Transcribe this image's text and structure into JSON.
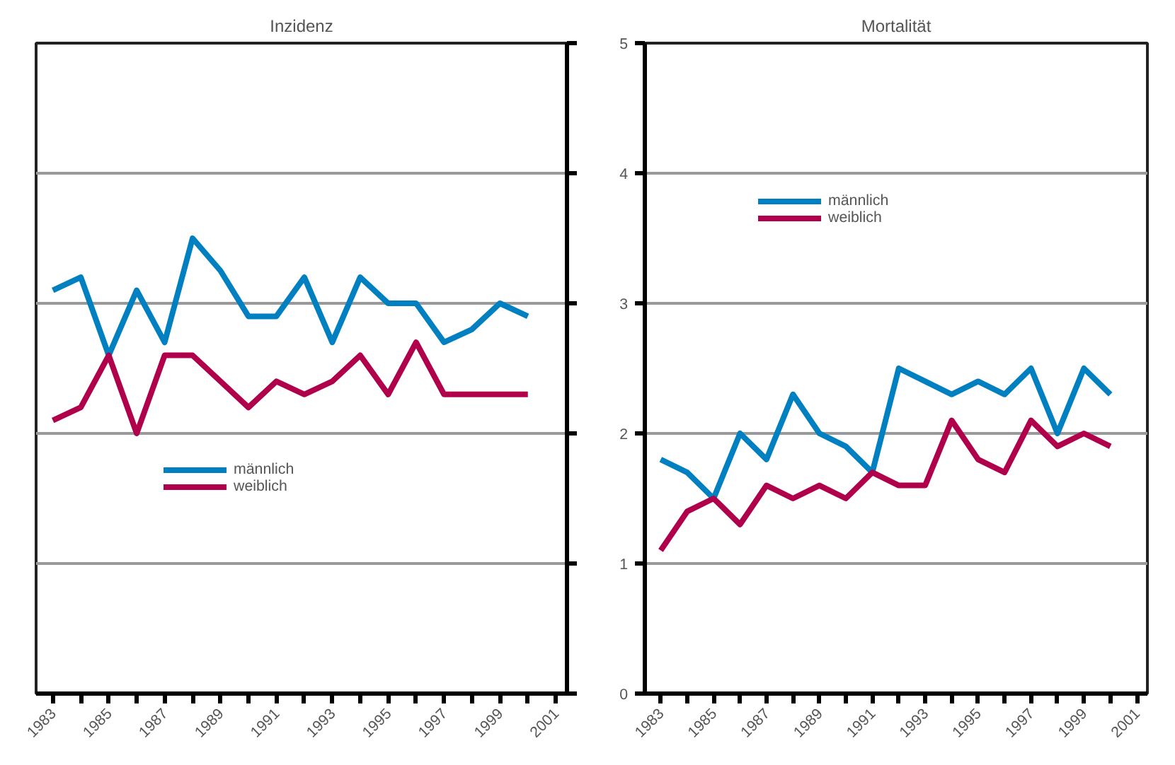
{
  "chart_data": [
    {
      "type": "line",
      "title": "Inzidenz",
      "x": [
        1983,
        1984,
        1985,
        1986,
        1987,
        1988,
        1989,
        1990,
        1991,
        1992,
        1993,
        1994,
        1995,
        1996,
        1997,
        1998,
        1999,
        2000
      ],
      "series": [
        {
          "name": "männlich",
          "color": "#0080c0",
          "values": [
            3.1,
            3.2,
            2.6,
            3.1,
            2.7,
            3.5,
            3.25,
            2.9,
            2.9,
            3.2,
            2.7,
            3.2,
            3.0,
            3.0,
            2.7,
            2.8,
            3.0,
            2.9
          ]
        },
        {
          "name": "weiblich",
          "color": "#b0004c",
          "values": [
            2.1,
            2.2,
            2.6,
            2.0,
            2.6,
            2.6,
            2.4,
            2.2,
            2.4,
            2.3,
            2.4,
            2.6,
            2.3,
            2.7,
            2.3,
            2.3,
            2.3,
            2.3
          ]
        }
      ],
      "xlim": [
        1982.4,
        2001.4
      ],
      "xticks": [
        1983,
        {
          "value": 1984,
          "label": null
        },
        1985,
        {
          "value": 1986,
          "label": null
        },
        1987,
        {
          "value": 1988,
          "label": null
        },
        1989,
        {
          "value": 1990,
          "label": null
        },
        1991,
        {
          "value": 1992,
          "label": null
        },
        1993,
        {
          "value": 1994,
          "label": null
        },
        1995,
        {
          "value": 1996,
          "label": null
        },
        1997,
        {
          "value": 1998,
          "label": null
        },
        1999,
        {
          "value": 2000,
          "label": null
        },
        2001
      ],
      "ylim": [
        0,
        5
      ],
      "yticks": [
        0,
        1,
        2,
        3,
        4,
        5
      ],
      "tick_labels": "x",
      "grid": "y",
      "legend": "center left",
      "line_style": "solid"
    },
    {
      "type": "line",
      "title": "Mortalität",
      "x": [
        1983,
        1984,
        1985,
        1986,
        1987,
        1988,
        1989,
        1990,
        1991,
        1992,
        1993,
        1994,
        1995,
        1996,
        1997,
        1998,
        1999,
        2000
      ],
      "series": [
        {
          "name": "männlich",
          "color": "#0080c0",
          "values": [
            1.8,
            1.7,
            1.5,
            2.0,
            1.8,
            2.3,
            2.0,
            1.9,
            1.7,
            2.5,
            2.4,
            2.3,
            2.4,
            2.3,
            2.5,
            2.0,
            2.5,
            2.3
          ]
        },
        {
          "name": "weiblich",
          "color": "#b0004c",
          "values": [
            1.1,
            1.4,
            1.5,
            1.3,
            1.6,
            1.5,
            1.6,
            1.5,
            1.7,
            1.6,
            1.6,
            2.1,
            1.8,
            1.7,
            2.1,
            1.9,
            2.0,
            1.9
          ]
        }
      ],
      "xlim": [
        1982.4,
        2001.4
      ],
      "xticks": [
        1983,
        {
          "value": 1984,
          "label": null
        },
        1985,
        {
          "value": 1986,
          "label": null
        },
        1987,
        {
          "value": 1988,
          "label": null
        },
        1989,
        {
          "value": 1990,
          "label": null
        },
        1991,
        {
          "value": 1992,
          "label": null
        },
        1993,
        {
          "value": 1994,
          "label": null
        },
        1995,
        {
          "value": 1996,
          "label": null
        },
        1997,
        {
          "value": 1998,
          "label": null
        },
        1999,
        {
          "value": 2000,
          "label": null
        },
        2001
      ],
      "ylim": [
        0,
        5
      ],
      "yticks": [
        0,
        1,
        2,
        3,
        4,
        5
      ],
      "grid": "y",
      "legend": "top left",
      "line_style": "solid"
    }
  ]
}
